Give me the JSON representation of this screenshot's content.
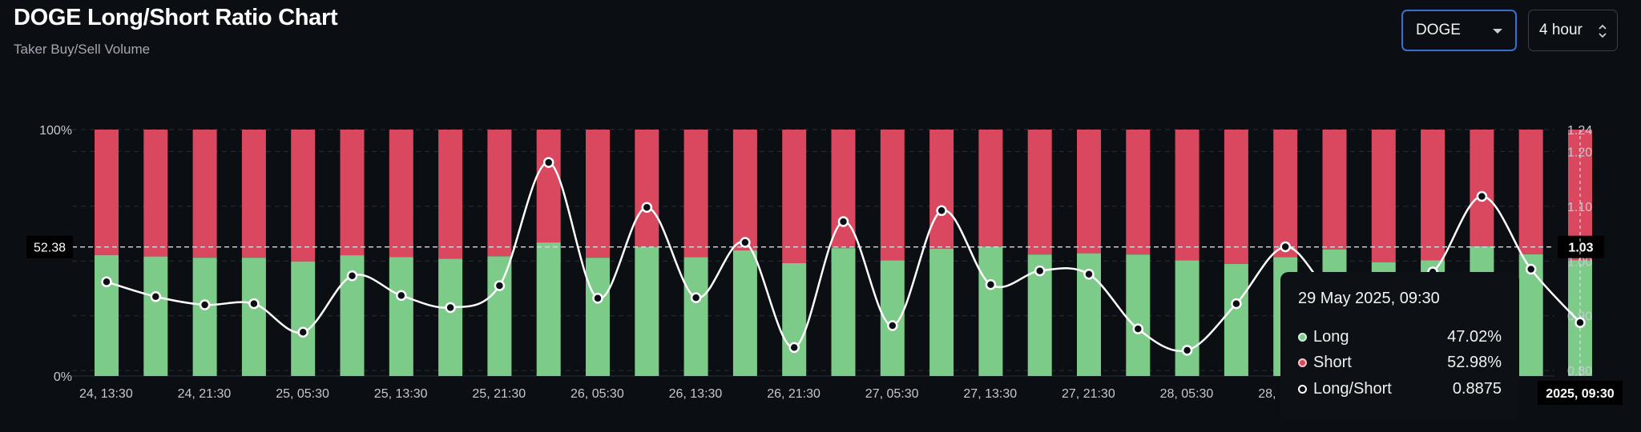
{
  "header": {
    "title": "DOGE Long/Short Ratio Chart",
    "subtitle": "Taker Buy/Sell Volume"
  },
  "controls": {
    "symbol_value": "DOGE",
    "interval_value": "4 hour"
  },
  "colors": {
    "long": "#7ccb89",
    "short": "#d9485f",
    "ratio_line": "#ffffff",
    "background": "#0b0e13"
  },
  "chart_data": {
    "type": "bar",
    "stacked": true,
    "left_axis": {
      "ticks": [
        "100%",
        "0%"
      ],
      "ylim": [
        0,
        100
      ],
      "marker": "52.38"
    },
    "right_axis": {
      "ticks": [
        "1.24",
        "1.20",
        "1.10",
        "1.00",
        "0.90",
        "0.80"
      ],
      "ylim": [
        0.79,
        1.24
      ],
      "marker": "1.03"
    },
    "x_tick_labels": [
      "24, 13:30",
      "24, 21:30",
      "25, 05:30",
      "25, 13:30",
      "25, 21:30",
      "26, 05:30",
      "26, 13:30",
      "26, 21:30",
      "27, 05:30",
      "27, 13:30",
      "27, 21:30",
      "28, 05:30",
      "28,",
      "2025, 09:30"
    ],
    "series": [
      {
        "name": "Long",
        "values": [
          49.1,
          48.5,
          48.0,
          48.0,
          46.5,
          49.0,
          48.3,
          47.6,
          48.6,
          54.2,
          48.0,
          52.4,
          48.2,
          51.0,
          45.8,
          51.9,
          46.9,
          51.7,
          52.5,
          49.3,
          49.8,
          49.3,
          46.9,
          45.5,
          48.2,
          51.4,
          46.2,
          47.0,
          52.6,
          49.4,
          47.02
        ],
        "color": "#7ccb89"
      },
      {
        "name": "Short",
        "values": [
          50.9,
          51.5,
          52.0,
          52.0,
          53.5,
          51.0,
          51.7,
          52.4,
          51.4,
          45.8,
          52.0,
          47.6,
          51.8,
          49.0,
          54.2,
          48.1,
          53.1,
          48.3,
          47.5,
          50.7,
          50.2,
          50.7,
          53.1,
          54.5,
          51.8,
          48.6,
          53.8,
          53.0,
          47.4,
          50.6,
          52.98
        ],
        "color": "#d9485f"
      },
      {
        "name": "Long/Short",
        "values": [
          0.962,
          0.935,
          0.92,
          0.922,
          0.87,
          0.973,
          0.937,
          0.915,
          0.955,
          1.18,
          0.932,
          1.098,
          0.933,
          1.034,
          0.842,
          1.072,
          0.882,
          1.092,
          0.957,
          0.982,
          0.976,
          0.876,
          0.837,
          0.922,
          1.026,
          0.94,
          0.97,
          0.98,
          1.118,
          0.985,
          0.8875
        ],
        "color": "#ffffff"
      }
    ]
  },
  "tooltip": {
    "time": "29 May 2025, 09:30",
    "rows": [
      {
        "label": "Long",
        "value": "47.02%"
      },
      {
        "label": "Short",
        "value": "52.98%"
      },
      {
        "label": "Long/Short",
        "value": "0.8875"
      }
    ]
  }
}
